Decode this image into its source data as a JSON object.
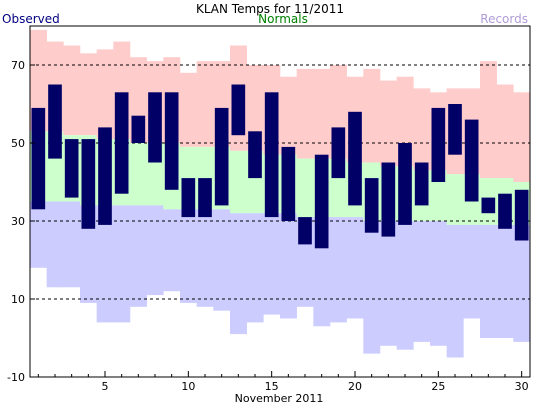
{
  "chart_data": {
    "type": "bar",
    "title": "KLAN Temps for 11/2011",
    "xlabel": "November 2011",
    "ylabel": "",
    "ylim": [
      -10,
      80
    ],
    "xlim": [
      0.5,
      30.5
    ],
    "yticks": [
      -10,
      10,
      30,
      50,
      70
    ],
    "xticks": [
      5,
      10,
      15,
      20,
      25,
      30
    ],
    "grid": "horizontal dashed at 10, 30, 50, 70",
    "legend": [
      "Observed",
      "Normals",
      "Records"
    ],
    "legend_placement": "top",
    "colors": {
      "observed": "#000066",
      "normals": "#ccffcc",
      "record_highs": "#ffcccc",
      "record_lows": "#ccccff",
      "legend_observed": "#000080",
      "legend_normals": "#008000",
      "legend_records": "#b19cd9"
    },
    "days": [
      1,
      2,
      3,
      4,
      5,
      6,
      7,
      8,
      9,
      10,
      11,
      12,
      13,
      14,
      15,
      16,
      17,
      18,
      19,
      20,
      21,
      22,
      23,
      24,
      25,
      26,
      27,
      28,
      29,
      30
    ],
    "series": [
      {
        "name": "Observed",
        "role": "observed",
        "high": [
          59,
          65,
          51,
          51,
          54,
          63,
          57,
          63,
          63,
          41,
          41,
          59,
          65,
          53,
          63,
          49,
          31,
          47,
          54,
          58,
          41,
          45,
          50,
          45,
          59,
          60,
          56,
          36,
          37,
          38
        ],
        "low": [
          33,
          46,
          36,
          28,
          29,
          37,
          50,
          45,
          38,
          31,
          31,
          34,
          52,
          41,
          31,
          30,
          24,
          23,
          41,
          34,
          27,
          26,
          29,
          34,
          40,
          47,
          35,
          32,
          28,
          25
        ]
      },
      {
        "name": "Normals",
        "role": "normals",
        "high": [
          53,
          53,
          52,
          52,
          51,
          51,
          50,
          50,
          50,
          49,
          49,
          49,
          48,
          48,
          47,
          47,
          46,
          46,
          46,
          45,
          45,
          44,
          44,
          43,
          43,
          42,
          42,
          41,
          41,
          40
        ],
        "low": [
          35,
          35,
          35,
          34,
          34,
          34,
          34,
          34,
          33,
          33,
          33,
          33,
          32,
          32,
          32,
          32,
          31,
          31,
          31,
          31,
          30,
          30,
          30,
          30,
          30,
          29,
          29,
          29,
          29,
          29
        ]
      },
      {
        "name": "Records",
        "role": "records",
        "high": [
          79,
          76,
          75,
          73,
          74,
          76,
          72,
          71,
          72,
          68,
          71,
          71,
          75,
          70,
          70,
          67,
          69,
          69,
          70,
          67,
          69,
          66,
          67,
          64,
          63,
          64,
          64,
          71,
          65,
          63
        ],
        "low": [
          18,
          13,
          13,
          9,
          4,
          4,
          8,
          11,
          12,
          9,
          8,
          7,
          1,
          4,
          6,
          5,
          8,
          3,
          4,
          5,
          -4,
          -2,
          -3,
          -1,
          -2,
          -5,
          5,
          0,
          0,
          -1
        ]
      }
    ]
  }
}
